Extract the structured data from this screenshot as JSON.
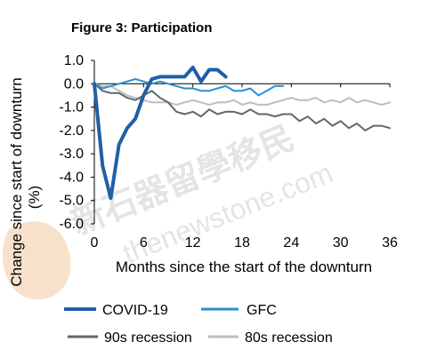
{
  "chart_data": {
    "type": "line",
    "title": "Figure 3: Participation",
    "xlabel": "Months since the start of the downturn",
    "ylabel": "Change since start of downturn (%)",
    "ylabel_lines": [
      "Change since start of downturn",
      "(%)"
    ],
    "xlim": [
      0,
      36
    ],
    "ylim": [
      -6.0,
      1.0
    ],
    "x_ticks": [
      0,
      6,
      12,
      18,
      24,
      30,
      36
    ],
    "y_ticks": [
      1.0,
      0.0,
      -1.0,
      -2.0,
      -3.0,
      -4.0,
      -5.0,
      -6.0
    ],
    "x_tick_labels": [
      "0",
      "6",
      "12",
      "18",
      "24",
      "30",
      "36"
    ],
    "y_tick_labels": [
      "1.0",
      "0.0",
      "-1.0",
      "-2.0",
      "-3.0",
      "-4.0",
      "-5.0",
      "-6.0"
    ],
    "grid": false,
    "legend_position": "bottom",
    "series": [
      {
        "name": "COVID-19",
        "color": "#1f5fa8",
        "width": 4,
        "x": [
          0,
          1,
          2,
          3,
          4,
          5,
          6,
          7,
          8,
          9,
          10,
          11,
          12,
          13,
          14,
          15,
          16
        ],
        "y": [
          0.0,
          -3.5,
          -4.9,
          -2.6,
          -1.9,
          -1.5,
          -0.5,
          0.2,
          0.3,
          0.3,
          0.3,
          0.3,
          0.7,
          0.1,
          0.6,
          0.6,
          0.3
        ]
      },
      {
        "name": "GFC",
        "color": "#2b8ed0",
        "width": 2,
        "x": [
          0,
          1,
          2,
          3,
          4,
          5,
          6,
          7,
          8,
          9,
          10,
          11,
          12,
          13,
          14,
          15,
          16,
          17,
          18,
          19,
          20,
          21,
          22,
          23
        ],
        "y": [
          0.0,
          -0.2,
          -0.1,
          0.0,
          0.1,
          0.2,
          0.1,
          0.0,
          0.1,
          0.0,
          -0.1,
          -0.2,
          -0.2,
          -0.3,
          -0.3,
          -0.2,
          -0.1,
          -0.3,
          -0.3,
          -0.2,
          -0.5,
          -0.3,
          -0.1,
          -0.1
        ]
      },
      {
        "name": "90s recession",
        "color": "#5f6770",
        "width": 2,
        "x": [
          0,
          1,
          2,
          3,
          4,
          5,
          6,
          7,
          8,
          9,
          10,
          11,
          12,
          13,
          14,
          15,
          16,
          17,
          18,
          19,
          20,
          21,
          22,
          23,
          24,
          25,
          26,
          27,
          28,
          29,
          30,
          31,
          32,
          33,
          34,
          35,
          36
        ],
        "y": [
          0.0,
          -0.3,
          -0.4,
          -0.4,
          -0.6,
          -0.7,
          -0.5,
          -0.3,
          -0.6,
          -0.8,
          -1.2,
          -1.3,
          -1.2,
          -1.4,
          -1.1,
          -1.3,
          -1.2,
          -1.2,
          -1.3,
          -1.1,
          -1.3,
          -1.3,
          -1.4,
          -1.3,
          -1.3,
          -1.6,
          -1.4,
          -1.7,
          -1.5,
          -1.8,
          -1.6,
          -1.9,
          -1.7,
          -2.0,
          -1.8,
          -1.8,
          -1.9
        ]
      },
      {
        "name": "80s recession",
        "color": "#bdbdbd",
        "width": 2,
        "x": [
          0,
          1,
          2,
          3,
          4,
          5,
          6,
          7,
          8,
          9,
          10,
          11,
          12,
          13,
          14,
          15,
          16,
          17,
          18,
          19,
          20,
          21,
          22,
          23,
          24,
          25,
          26,
          27,
          28,
          29,
          30,
          31,
          32,
          33,
          34,
          35,
          36
        ],
        "y": [
          0.0,
          -0.1,
          -0.1,
          -0.3,
          -0.5,
          -0.6,
          -0.7,
          -0.8,
          -0.8,
          -0.8,
          -0.9,
          -0.8,
          -0.7,
          -0.8,
          -0.9,
          -0.8,
          -0.8,
          -0.7,
          -0.9,
          -0.8,
          -0.9,
          -0.9,
          -0.8,
          -0.7,
          -0.6,
          -0.7,
          -0.7,
          -0.6,
          -0.8,
          -0.7,
          -0.8,
          -0.6,
          -0.8,
          -0.7,
          -0.8,
          -0.9,
          -0.8
        ]
      }
    ]
  },
  "watermark": {
    "lines": [
      "新石器留學移民",
      "thenewstone.com"
    ],
    "color": "#d9d9d9",
    "logo_color": "#f2c9a0"
  }
}
